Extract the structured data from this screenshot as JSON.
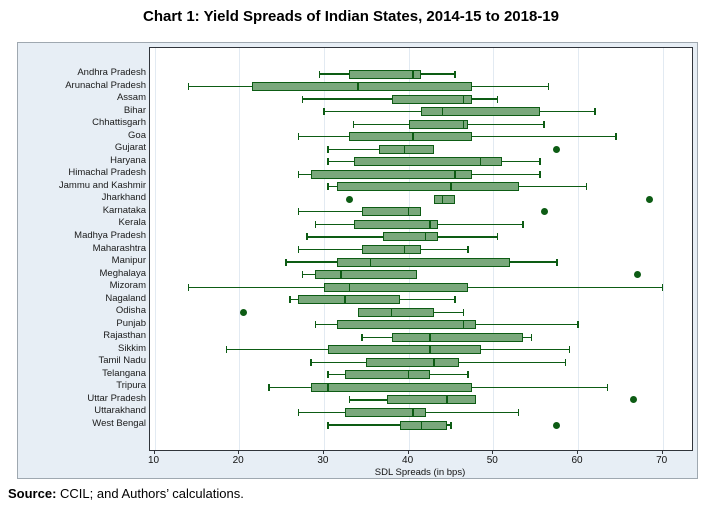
{
  "title": "Chart 1: Yield Spreads of Indian States, 2014-15 to 2018-19",
  "source": {
    "label": "Source:",
    "text": " CCIL; and Authors’ calculations."
  },
  "chart_data": {
    "type": "boxplot",
    "orientation": "horizontal",
    "title": "Chart 1: Yield Spreads of Indian States, 2014-15 to 2018-19",
    "xlabel": "SDL Spreads (in bps)",
    "x_ticks": [
      10,
      20,
      30,
      40,
      50,
      60,
      70
    ],
    "xlim": [
      9.5,
      73.5
    ],
    "grid": true,
    "colors": {
      "box_fill": "#7aa87c",
      "box_border": "#0d5c14",
      "whisker": "#0d5c14",
      "outlier": "#0d5c14",
      "figure_bg": "#e7eef5",
      "plot_bg": "#ffffff"
    },
    "states": [
      {
        "name": "Andhra Pradesh",
        "whisker_low": 29.5,
        "q1": 33.0,
        "median": 40.5,
        "q3": 41.5,
        "whisker_high": 45.5,
        "outliers": []
      },
      {
        "name": "Arunachal Pradesh",
        "whisker_low": 14.0,
        "q1": 21.5,
        "median": 34.0,
        "q3": 47.5,
        "whisker_high": 56.5,
        "outliers": []
      },
      {
        "name": "Assam",
        "whisker_low": 27.5,
        "q1": 38.0,
        "median": 46.5,
        "q3": 47.5,
        "whisker_high": 50.5,
        "outliers": []
      },
      {
        "name": "Bihar",
        "whisker_low": 30.0,
        "q1": 41.5,
        "median": 44.0,
        "q3": 55.5,
        "whisker_high": 62.0,
        "outliers": []
      },
      {
        "name": "Chhattisgarh",
        "whisker_low": 33.5,
        "q1": 40.0,
        "median": 46.5,
        "q3": 47.0,
        "whisker_high": 56.0,
        "outliers": []
      },
      {
        "name": "Goa",
        "whisker_low": 27.0,
        "q1": 33.0,
        "median": 40.5,
        "q3": 47.5,
        "whisker_high": 64.5,
        "outliers": []
      },
      {
        "name": "Gujarat",
        "whisker_low": 30.5,
        "q1": 36.5,
        "median": 39.5,
        "q3": 43.0,
        "whisker_high": 43.0,
        "outliers": [
          57.5
        ]
      },
      {
        "name": "Haryana",
        "whisker_low": 30.5,
        "q1": 33.5,
        "median": 48.5,
        "q3": 51.0,
        "whisker_high": 55.5,
        "outliers": []
      },
      {
        "name": "Himachal Pradesh",
        "whisker_low": 27.0,
        "q1": 28.5,
        "median": 45.5,
        "q3": 47.5,
        "whisker_high": 55.5,
        "outliers": []
      },
      {
        "name": "Jammu and Kashmir",
        "whisker_low": 30.5,
        "q1": 31.5,
        "median": 45.0,
        "q3": 53.0,
        "whisker_high": 61.0,
        "outliers": []
      },
      {
        "name": "Jharkhand",
        "whisker_low": 43.0,
        "q1": 43.0,
        "median": 44.0,
        "q3": 45.5,
        "whisker_high": 45.5,
        "outliers": [
          33.0,
          68.5
        ]
      },
      {
        "name": "Karnataka",
        "whisker_low": 27.0,
        "q1": 34.5,
        "median": 40.0,
        "q3": 41.5,
        "whisker_high": 41.5,
        "outliers": [
          56.0
        ]
      },
      {
        "name": "Kerala",
        "whisker_low": 29.0,
        "q1": 33.5,
        "median": 42.5,
        "q3": 43.5,
        "whisker_high": 53.5,
        "outliers": []
      },
      {
        "name": "Madhya Pradesh",
        "whisker_low": 28.0,
        "q1": 37.0,
        "median": 42.0,
        "q3": 43.5,
        "whisker_high": 50.5,
        "outliers": []
      },
      {
        "name": "Maharashtra",
        "whisker_low": 27.0,
        "q1": 34.5,
        "median": 39.5,
        "q3": 41.5,
        "whisker_high": 47.0,
        "outliers": []
      },
      {
        "name": "Manipur",
        "whisker_low": 25.5,
        "q1": 31.5,
        "median": 35.5,
        "q3": 52.0,
        "whisker_high": 57.5,
        "outliers": []
      },
      {
        "name": "Meghalaya",
        "whisker_low": 27.5,
        "q1": 29.0,
        "median": 32.0,
        "q3": 41.0,
        "whisker_high": 41.0,
        "outliers": [
          67.0
        ]
      },
      {
        "name": "Mizoram",
        "whisker_low": 14.0,
        "q1": 30.0,
        "median": 33.0,
        "q3": 47.0,
        "whisker_high": 70.0,
        "outliers": []
      },
      {
        "name": "Nagaland",
        "whisker_low": 26.0,
        "q1": 27.0,
        "median": 32.5,
        "q3": 39.0,
        "whisker_high": 45.5,
        "outliers": []
      },
      {
        "name": "Odisha",
        "whisker_low": 34.0,
        "q1": 34.0,
        "median": 38.0,
        "q3": 43.0,
        "whisker_high": 46.5,
        "outliers": [
          20.5
        ]
      },
      {
        "name": "Punjab",
        "whisker_low": 29.0,
        "q1": 31.5,
        "median": 46.5,
        "q3": 48.0,
        "whisker_high": 60.0,
        "outliers": []
      },
      {
        "name": "Rajasthan",
        "whisker_low": 34.5,
        "q1": 38.0,
        "median": 42.5,
        "q3": 53.5,
        "whisker_high": 54.5,
        "outliers": []
      },
      {
        "name": "Sikkim",
        "whisker_low": 18.5,
        "q1": 30.5,
        "median": 42.5,
        "q3": 48.5,
        "whisker_high": 59.0,
        "outliers": []
      },
      {
        "name": "Tamil Nadu",
        "whisker_low": 28.5,
        "q1": 35.0,
        "median": 43.0,
        "q3": 46.0,
        "whisker_high": 58.5,
        "outliers": []
      },
      {
        "name": "Telangana",
        "whisker_low": 30.5,
        "q1": 32.5,
        "median": 40.0,
        "q3": 42.5,
        "whisker_high": 47.0,
        "outliers": []
      },
      {
        "name": "Tripura",
        "whisker_low": 23.5,
        "q1": 28.5,
        "median": 30.5,
        "q3": 47.5,
        "whisker_high": 63.5,
        "outliers": []
      },
      {
        "name": "Uttar Pradesh",
        "whisker_low": 33.0,
        "q1": 37.5,
        "median": 44.5,
        "q3": 48.0,
        "whisker_high": 48.0,
        "outliers": [
          66.5
        ]
      },
      {
        "name": "Uttarakhand",
        "whisker_low": 27.0,
        "q1": 32.5,
        "median": 40.5,
        "q3": 42.0,
        "whisker_high": 53.0,
        "outliers": []
      },
      {
        "name": "West Bengal",
        "whisker_low": 30.5,
        "q1": 39.0,
        "median": 41.5,
        "q3": 44.5,
        "whisker_high": 45.0,
        "outliers": [
          57.5
        ]
      }
    ]
  }
}
